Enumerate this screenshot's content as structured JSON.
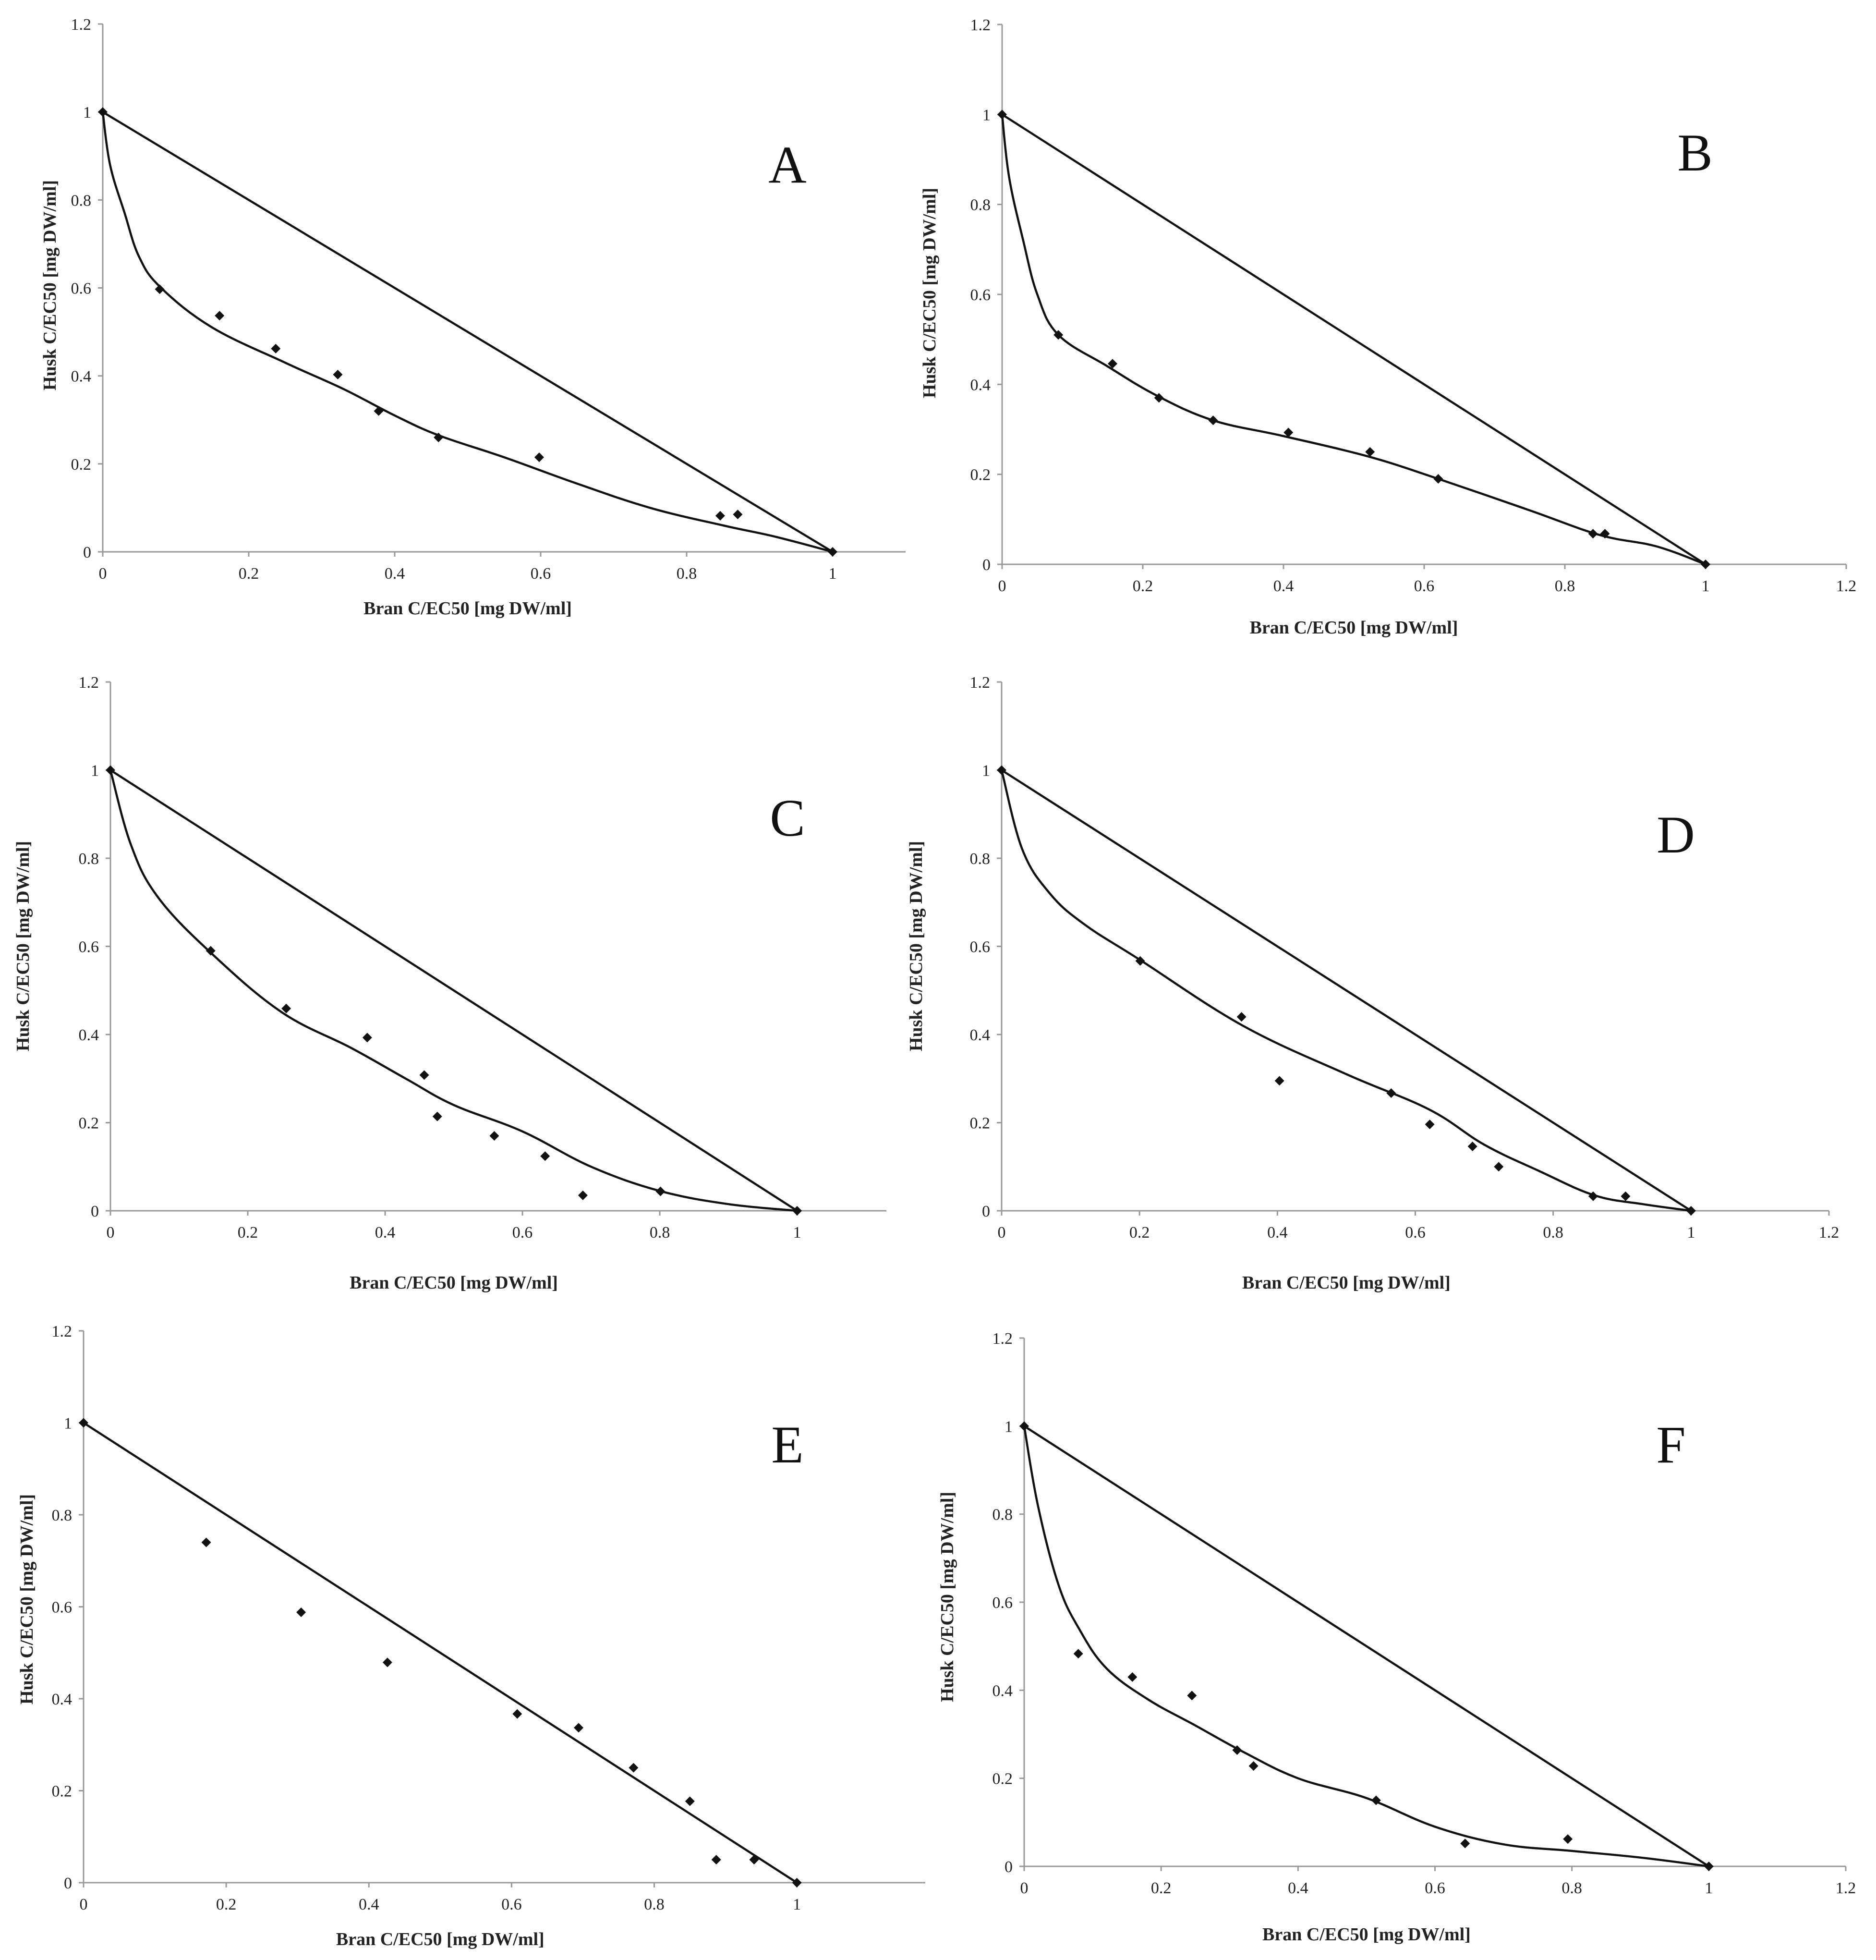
{
  "chart_data": [
    {
      "id": "A",
      "type": "scatter",
      "panel_label": "A",
      "xlabel": "Bran C/EC50 [mg DW/ml]",
      "ylabel": "Husk C/EC50 [mg DW/ml]",
      "xlim": [
        0,
        1.1
      ],
      "ylim": [
        0,
        1.2
      ],
      "xticks": [
        "0",
        "0.2",
        "0.4",
        "0.6",
        "0.8",
        "1"
      ],
      "yticks": [
        "0",
        "0.2",
        "0.4",
        "0.6",
        "0.8",
        "1",
        "1.2"
      ],
      "xtick_values": [
        0,
        0.2,
        0.4,
        0.6,
        0.8,
        1.0
      ],
      "ytick_values": [
        0,
        0.2,
        0.4,
        0.6,
        0.8,
        1.0,
        1.2
      ],
      "points": [
        [
          0,
          1
        ],
        [
          0.078,
          0.597
        ],
        [
          0.16,
          0.537
        ],
        [
          0.237,
          0.462
        ],
        [
          0.322,
          0.403
        ],
        [
          0.378,
          0.32
        ],
        [
          0.46,
          0.26
        ],
        [
          0.598,
          0.215
        ],
        [
          0.846,
          0.082
        ],
        [
          0.87,
          0.085
        ],
        [
          1,
          0
        ]
      ],
      "additivity_line": [
        [
          0,
          1
        ],
        [
          1,
          0
        ]
      ],
      "curve": [
        [
          0,
          1
        ],
        [
          0.01,
          0.88
        ],
        [
          0.03,
          0.77
        ],
        [
          0.05,
          0.67
        ],
        [
          0.08,
          0.6
        ],
        [
          0.15,
          0.51
        ],
        [
          0.25,
          0.43
        ],
        [
          0.33,
          0.37
        ],
        [
          0.4,
          0.31
        ],
        [
          0.46,
          0.265
        ],
        [
          0.55,
          0.215
        ],
        [
          0.65,
          0.155
        ],
        [
          0.75,
          0.1
        ],
        [
          0.85,
          0.06
        ],
        [
          0.92,
          0.035
        ],
        [
          1,
          0
        ]
      ]
    },
    {
      "id": "B",
      "type": "scatter",
      "panel_label": "B",
      "xlabel": "Bran C/EC50 [mg DW/ml]",
      "ylabel": "Husk C/EC50 [mg DW/ml]",
      "xlim": [
        0,
        1.2
      ],
      "ylim": [
        0,
        1.2
      ],
      "xticks": [
        "0",
        "0.2",
        "0.4",
        "0.6",
        "0.8",
        "1",
        "1.2"
      ],
      "yticks": [
        "0",
        "0.2",
        "0.4",
        "0.6",
        "0.8",
        "1",
        "1.2"
      ],
      "xtick_values": [
        0,
        0.2,
        0.4,
        0.6,
        0.8,
        1.0,
        1.2
      ],
      "ytick_values": [
        0,
        0.2,
        0.4,
        0.6,
        0.8,
        1.0,
        1.2
      ],
      "points": [
        [
          0,
          1
        ],
        [
          0.08,
          0.51
        ],
        [
          0.157,
          0.446
        ],
        [
          0.223,
          0.37
        ],
        [
          0.3,
          0.32
        ],
        [
          0.407,
          0.293
        ],
        [
          0.523,
          0.25
        ],
        [
          0.62,
          0.19
        ],
        [
          0.84,
          0.068
        ],
        [
          0.857,
          0.068
        ],
        [
          1,
          0
        ]
      ],
      "additivity_line": [
        [
          0,
          1
        ],
        [
          1,
          0
        ]
      ],
      "curve": [
        [
          0,
          1
        ],
        [
          0.01,
          0.86
        ],
        [
          0.03,
          0.72
        ],
        [
          0.05,
          0.6
        ],
        [
          0.08,
          0.51
        ],
        [
          0.15,
          0.44
        ],
        [
          0.22,
          0.375
        ],
        [
          0.3,
          0.32
        ],
        [
          0.4,
          0.285
        ],
        [
          0.52,
          0.24
        ],
        [
          0.62,
          0.19
        ],
        [
          0.75,
          0.12
        ],
        [
          0.85,
          0.065
        ],
        [
          0.93,
          0.04
        ],
        [
          1,
          0
        ]
      ]
    },
    {
      "id": "C",
      "type": "scatter",
      "panel_label": "C",
      "xlabel": "Bran C/EC50 [mg DW/ml]",
      "ylabel": "Husk C/EC50 [mg DW/ml]",
      "xlim": [
        0,
        1.13
      ],
      "ylim": [
        0,
        1.2
      ],
      "xticks": [
        "0",
        "0.2",
        "0.4",
        "0.6",
        "0.8",
        "1"
      ],
      "yticks": [
        "0",
        "0.2",
        "0.4",
        "0.6",
        "0.8",
        "1",
        "1.2"
      ],
      "xtick_values": [
        0,
        0.2,
        0.4,
        0.6,
        0.8,
        1.0
      ],
      "ytick_values": [
        0,
        0.2,
        0.4,
        0.6,
        0.8,
        1.0,
        1.2
      ],
      "points": [
        [
          0,
          1
        ],
        [
          0.146,
          0.59
        ],
        [
          0.256,
          0.459
        ],
        [
          0.374,
          0.393
        ],
        [
          0.457,
          0.308
        ],
        [
          0.476,
          0.214
        ],
        [
          0.559,
          0.17
        ],
        [
          0.633,
          0.124
        ],
        [
          0.688,
          0.035
        ],
        [
          0.801,
          0.044
        ],
        [
          1,
          0
        ]
      ],
      "additivity_line": [
        [
          0,
          1
        ],
        [
          1,
          0
        ]
      ],
      "curve": [
        [
          0,
          1
        ],
        [
          0.03,
          0.83
        ],
        [
          0.07,
          0.71
        ],
        [
          0.15,
          0.58
        ],
        [
          0.25,
          0.45
        ],
        [
          0.35,
          0.37
        ],
        [
          0.43,
          0.3
        ],
        [
          0.5,
          0.24
        ],
        [
          0.6,
          0.18
        ],
        [
          0.7,
          0.1
        ],
        [
          0.8,
          0.045
        ],
        [
          0.9,
          0.015
        ],
        [
          1,
          0
        ]
      ]
    },
    {
      "id": "D",
      "type": "scatter",
      "panel_label": "D",
      "xlabel": "Bran C/EC50 [mg DW/ml]",
      "ylabel": "Husk C/EC50 [mg DW/ml]",
      "xlim": [
        0,
        1.2
      ],
      "ylim": [
        0,
        1.2
      ],
      "xticks": [
        "0",
        "0.2",
        "0.4",
        "0.6",
        "0.8",
        "1",
        "1.2"
      ],
      "yticks": [
        "0",
        "0.2",
        "0.4",
        "0.6",
        "0.8",
        "1",
        "1.2"
      ],
      "xtick_values": [
        0,
        0.2,
        0.4,
        0.6,
        0.8,
        1.0,
        1.2
      ],
      "ytick_values": [
        0,
        0.2,
        0.4,
        0.6,
        0.8,
        1.0,
        1.2
      ],
      "points": [
        [
          0,
          1
        ],
        [
          0.201,
          0.567
        ],
        [
          0.348,
          0.44
        ],
        [
          0.403,
          0.295
        ],
        [
          0.565,
          0.267
        ],
        [
          0.621,
          0.196
        ],
        [
          0.683,
          0.146
        ],
        [
          0.721,
          0.1
        ],
        [
          0.858,
          0.033
        ],
        [
          0.905,
          0.033
        ],
        [
          1,
          0
        ]
      ],
      "additivity_line": [
        [
          0,
          1
        ],
        [
          1,
          0
        ]
      ],
      "curve": [
        [
          0,
          1
        ],
        [
          0.03,
          0.82
        ],
        [
          0.07,
          0.72
        ],
        [
          0.12,
          0.65
        ],
        [
          0.2,
          0.57
        ],
        [
          0.35,
          0.42
        ],
        [
          0.5,
          0.31
        ],
        [
          0.62,
          0.23
        ],
        [
          0.7,
          0.15
        ],
        [
          0.78,
          0.09
        ],
        [
          0.86,
          0.035
        ],
        [
          0.93,
          0.015
        ],
        [
          1,
          0
        ]
      ]
    },
    {
      "id": "E",
      "type": "scatter",
      "panel_label": "E",
      "xlabel": "Bran C/EC50 [mg DW/ml]",
      "ylabel": "Husk C/EC50 [mg DW/ml]",
      "xlim": [
        0,
        1.18
      ],
      "ylim": [
        0,
        1.2
      ],
      "xticks": [
        "0",
        "0.2",
        "0.4",
        "0.6",
        "0.8",
        "1"
      ],
      "yticks": [
        "0",
        "0.2",
        "0.4",
        "0.6",
        "0.8",
        "1",
        "1.2"
      ],
      "xtick_values": [
        0,
        0.2,
        0.4,
        0.6,
        0.8,
        1.0
      ],
      "ytick_values": [
        0,
        0.2,
        0.4,
        0.6,
        0.8,
        1.0,
        1.2
      ],
      "points": [
        [
          0,
          1
        ],
        [
          0.172,
          0.74
        ],
        [
          0.305,
          0.588
        ],
        [
          0.426,
          0.479
        ],
        [
          0.608,
          0.367
        ],
        [
          0.694,
          0.337
        ],
        [
          0.771,
          0.25
        ],
        [
          0.85,
          0.177
        ],
        [
          0.887,
          0.05
        ],
        [
          0.94,
          0.05
        ],
        [
          1,
          0
        ]
      ],
      "additivity_line": [
        [
          0,
          1
        ],
        [
          1,
          0
        ]
      ],
      "curve": []
    },
    {
      "id": "F",
      "type": "scatter",
      "panel_label": "F",
      "xlabel": "Bran C/EC50 [mg DW/ml]",
      "ylabel": "Husk C/EC50 [mg DW/ml]",
      "xlim": [
        0,
        1.2
      ],
      "ylim": [
        0,
        1.2
      ],
      "xticks": [
        "0",
        "0.2",
        "0.4",
        "0.6",
        "0.8",
        "1",
        "1.2"
      ],
      "yticks": [
        "0",
        "0.2",
        "0.4",
        "0.6",
        "0.8",
        "1",
        "1.2"
      ],
      "xtick_values": [
        0,
        0.2,
        0.4,
        0.6,
        0.8,
        1.0,
        1.2
      ],
      "ytick_values": [
        0,
        0.2,
        0.4,
        0.6,
        0.8,
        1.0,
        1.2
      ],
      "points": [
        [
          0,
          1
        ],
        [
          0.079,
          0.483
        ],
        [
          0.158,
          0.43
        ],
        [
          0.245,
          0.388
        ],
        [
          0.311,
          0.264
        ],
        [
          0.335,
          0.228
        ],
        [
          0.514,
          0.15
        ],
        [
          0.644,
          0.052
        ],
        [
          0.794,
          0.062
        ],
        [
          1,
          0
        ]
      ],
      "additivity_line": [
        [
          0,
          1
        ],
        [
          1,
          0
        ]
      ],
      "curve": [
        [
          0,
          1
        ],
        [
          0.02,
          0.82
        ],
        [
          0.05,
          0.64
        ],
        [
          0.08,
          0.54
        ],
        [
          0.12,
          0.45
        ],
        [
          0.18,
          0.38
        ],
        [
          0.25,
          0.32
        ],
        [
          0.32,
          0.26
        ],
        [
          0.4,
          0.2
        ],
        [
          0.5,
          0.155
        ],
        [
          0.6,
          0.09
        ],
        [
          0.7,
          0.05
        ],
        [
          0.8,
          0.035
        ],
        [
          0.9,
          0.02
        ],
        [
          1,
          0
        ]
      ]
    }
  ]
}
